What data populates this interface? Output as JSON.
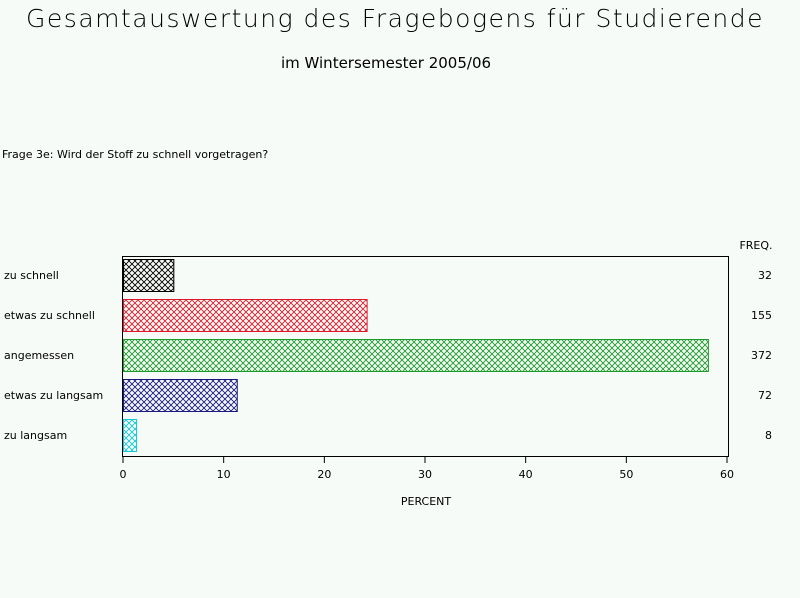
{
  "header": {
    "title": "Gesamtauswertung des Fragebogens für Studierende",
    "subtitle": "im Wintersemester 2005/06"
  },
  "question": "Frage 3e: Wird der Stoff zu schnell vorgetragen?",
  "chart_data": {
    "type": "bar",
    "orientation": "horizontal",
    "categories": [
      "zu schnell",
      "etwas zu schnell",
      "angemessen",
      "etwas zu langsam",
      "zu langsam"
    ],
    "values": [
      5.0,
      24.2,
      58.1,
      11.3,
      1.3
    ],
    "freq": [
      "32",
      "155",
      "372",
      "72",
      "8"
    ],
    "freq_label": "FREQ.",
    "xlabel": "PERCENT",
    "xlim": [
      0,
      60
    ],
    "xticks": [
      "0",
      "10",
      "20",
      "30",
      "40",
      "50",
      "60"
    ],
    "colors": [
      "#000000",
      "#e0182c",
      "#1a9a2a",
      "#18187e",
      "#10c8d8"
    ]
  }
}
